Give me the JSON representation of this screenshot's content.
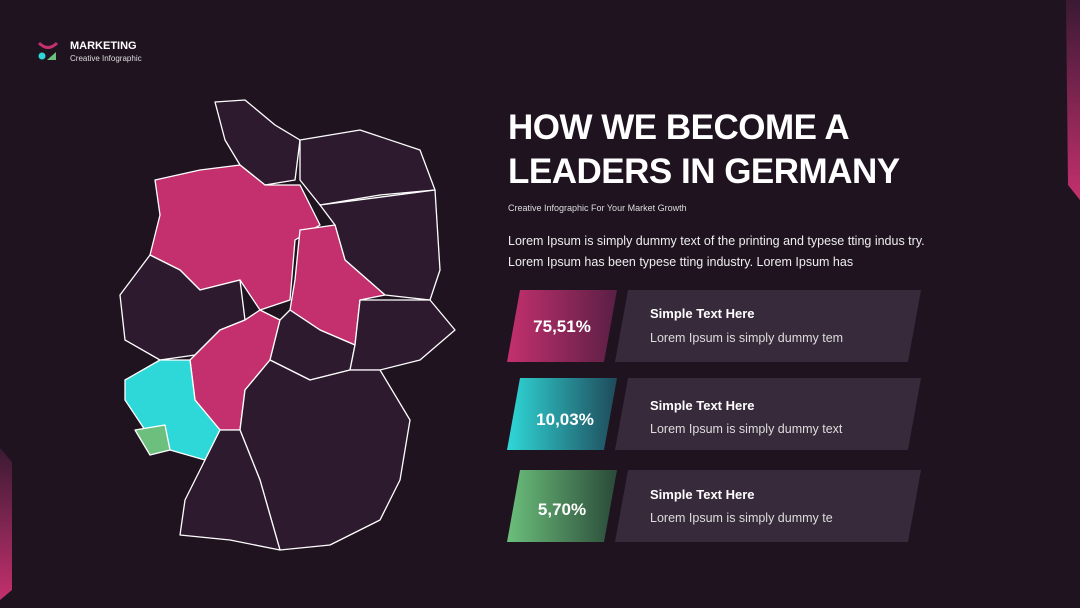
{
  "header": {
    "brand": "MARKETING",
    "tagline": "Creative Infographic"
  },
  "title": {
    "lines": [
      "HOW WE BECOME A",
      "LEADERS IN GERMANY"
    ]
  },
  "subtitle": "Creative Infographic For Your Market Growth",
  "body": {
    "lines": [
      "Lorem Ipsum is simply dummy text of the printing and typese tting indus try.",
      "Lorem Ipsum has been typese tting industry. Lorem Ipsum has"
    ]
  },
  "stats": [
    {
      "value": "75,51%",
      "heading": "Simple Text Here",
      "text": "Lorem Ipsum is simply dummy tem"
    },
    {
      "value": "10,03%",
      "heading": "Simple Text Here",
      "text": "Lorem Ipsum is simply dummy text"
    },
    {
      "value": "5,70%",
      "heading": "Simple Text Here",
      "text": "Lorem Ipsum is simply dummy te"
    }
  ]
}
